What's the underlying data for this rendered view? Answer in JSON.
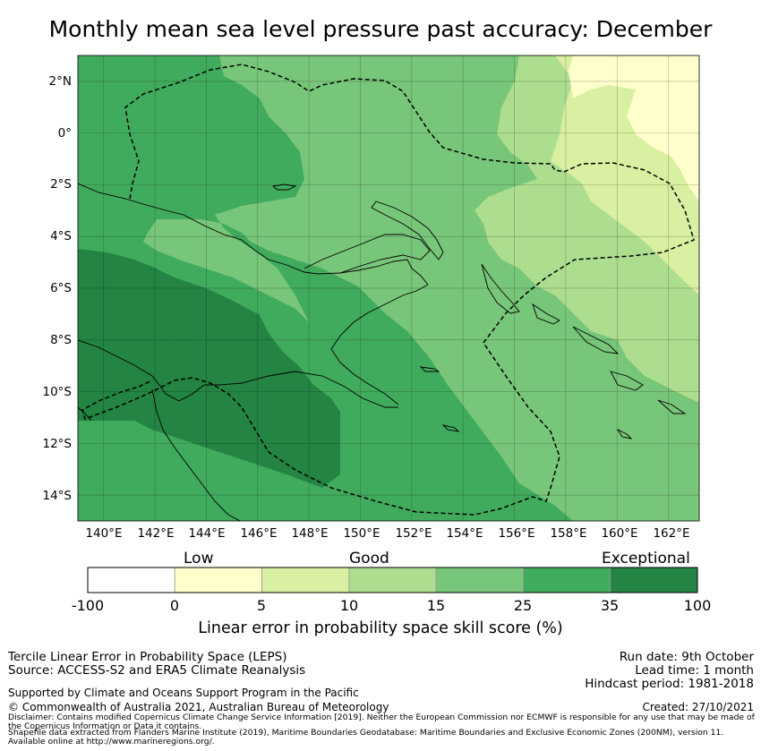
{
  "title": "Monthly mean sea level pressure past accuracy: December",
  "map": {
    "lat_labels": [
      "2°N",
      "0°",
      "2°S",
      "4°S",
      "6°S",
      "8°S",
      "10°S",
      "12°S",
      "14°S"
    ],
    "lon_labels": [
      "140°E",
      "142°E",
      "144°E",
      "146°E",
      "148°E",
      "150°E",
      "152°E",
      "154°E",
      "156°E",
      "158°E",
      "160°E",
      "162°E"
    ],
    "extent": {
      "lon_min": 139,
      "lon_max": 163.2,
      "lat_min": -15,
      "lat_max": 3
    },
    "boundary_dash": "dashed",
    "colors": {
      "c5_10": "#d9efa1",
      "c0_5": "#ffffcc",
      "c10_15": "#addd8e",
      "c15_25": "#78c679",
      "c25_35": "#41ab5d",
      "c35_100": "#238443"
    }
  },
  "colorbar": {
    "categories": [
      "Low",
      "Good",
      "Exceptional"
    ],
    "ticks": [
      "-100",
      "0",
      "5",
      "10",
      "15",
      "25",
      "35",
      "100"
    ],
    "bins": [
      {
        "range": "-100 to 0",
        "color": "#ffffff"
      },
      {
        "range": "0 to 5",
        "color": "#ffffcc"
      },
      {
        "range": "5 to 10",
        "color": "#d9efa1"
      },
      {
        "range": "10 to 15",
        "color": "#addd8e"
      },
      {
        "range": "15 to 25",
        "color": "#78c679"
      },
      {
        "range": "25 to 35",
        "color": "#41ab5d"
      },
      {
        "range": "35 to 100",
        "color": "#238443"
      }
    ],
    "title": "Linear error in probability space skill score (%)"
  },
  "footer": {
    "left_line1": "Tercile Linear Error in Probability Space (LEPS)",
    "left_line2": "Source: ACCESS-S2 and ERA5 Climate Reanalysis",
    "support": "Supported by Climate and Oceans Support Program in the Pacific",
    "copyright": "© Commonwealth of Australia 2021, Australian Bureau of Meteorology",
    "run_date": "Run date: 9th October",
    "lead_time": "Lead time: 1 month",
    "hindcast": "Hindcast period: 1981-2018",
    "created": "Created: 27/10/2021",
    "disclaimer1": "Disclaimer: Contains modified Copernicus Climate Change Service Information [2019]. Neither the European Commission nor ECMWF is responsible for any use that may be made of",
    "disclaimer2": "the Copernicus Information or Data it contains.",
    "shapefile1": "Shapefile data extracted from Flanders Marine Institute (2019), Maritime Boundaries Geodatabase: Maritime Boundaries and Exclusive Economic Zones (200NM), version 11.",
    "shapefile2": "Available online at http://www.marineregions.org/."
  }
}
